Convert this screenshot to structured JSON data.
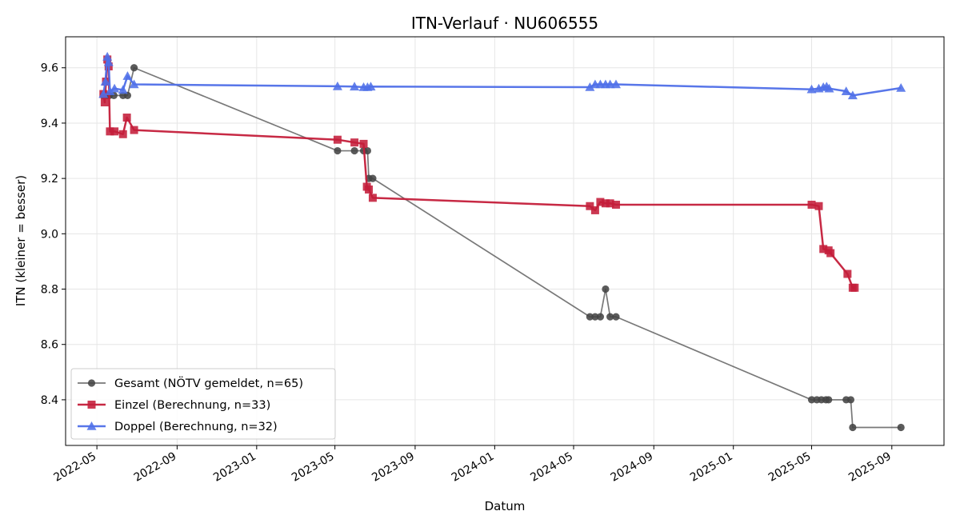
{
  "chart_data": {
    "type": "line",
    "title": "ITN-Verlauf · NU606555",
    "xlabel": "Datum",
    "ylabel": "ITN  (kleiner = besser)",
    "x_axis_type": "date",
    "xlim": [
      "2022-03-14",
      "2025-11-20"
    ],
    "ylim": [
      8.235,
      9.712
    ],
    "x_ticks": [
      "2022-05",
      "2022-09",
      "2023-01",
      "2023-05",
      "2023-09",
      "2024-01",
      "2024-05",
      "2024-09",
      "2025-01",
      "2025-05",
      "2025-09"
    ],
    "y_ticks": [
      8.4,
      8.6,
      8.8,
      9.0,
      9.2,
      9.4,
      9.6
    ],
    "grid": true,
    "legend_position": "lower-left",
    "series": [
      {
        "name": "Gesamt (NÖTV gemeldet, n=65)",
        "color": "#444444",
        "marker": "circle",
        "points": [
          [
            "2022-05-11",
            9.5
          ],
          [
            "2022-05-14",
            9.5
          ],
          [
            "2022-05-17",
            9.5
          ],
          [
            "2022-05-20",
            9.5
          ],
          [
            "2022-05-27",
            9.5
          ],
          [
            "2022-06-10",
            9.5
          ],
          [
            "2022-06-17",
            9.5
          ],
          [
            "2022-06-27",
            9.6
          ],
          [
            "2023-05-05",
            9.3
          ],
          [
            "2023-05-31",
            9.3
          ],
          [
            "2023-06-14",
            9.3
          ],
          [
            "2023-06-20",
            9.3
          ],
          [
            "2023-06-22",
            9.2
          ],
          [
            "2023-06-28",
            9.2
          ],
          [
            "2024-05-26",
            8.7
          ],
          [
            "2024-06-03",
            8.7
          ],
          [
            "2024-06-11",
            8.7
          ],
          [
            "2024-06-19",
            8.8
          ],
          [
            "2024-06-26",
            8.7
          ],
          [
            "2024-07-05",
            8.7
          ],
          [
            "2025-05-01",
            8.4
          ],
          [
            "2025-05-09",
            8.4
          ],
          [
            "2025-05-16",
            8.4
          ],
          [
            "2025-05-23",
            8.4
          ],
          [
            "2025-05-27",
            8.4
          ],
          [
            "2025-06-23",
            8.4
          ],
          [
            "2025-06-30",
            8.4
          ],
          [
            "2025-07-03",
            8.3
          ],
          [
            "2025-09-15",
            8.3
          ]
        ]
      },
      {
        "name": "Einzel (Berechnung, n=33)",
        "color": "#c41e3a",
        "marker": "square",
        "points": [
          [
            "2022-05-11",
            9.505
          ],
          [
            "2022-05-13",
            9.475
          ],
          [
            "2022-05-15",
            9.55
          ],
          [
            "2022-05-17",
            9.63
          ],
          [
            "2022-05-19",
            9.605
          ],
          [
            "2022-05-21",
            9.37
          ],
          [
            "2022-05-28",
            9.37
          ],
          [
            "2022-06-10",
            9.36
          ],
          [
            "2022-06-16",
            9.42
          ],
          [
            "2022-06-27",
            9.375
          ],
          [
            "2023-05-05",
            9.34
          ],
          [
            "2023-05-31",
            9.33
          ],
          [
            "2023-06-14",
            9.325
          ],
          [
            "2023-06-19",
            9.17
          ],
          [
            "2023-06-22",
            9.16
          ],
          [
            "2023-06-28",
            9.13
          ],
          [
            "2024-05-26",
            9.1
          ],
          [
            "2024-06-03",
            9.085
          ],
          [
            "2024-06-11",
            9.115
          ],
          [
            "2024-06-19",
            9.11
          ],
          [
            "2024-06-26",
            9.11
          ],
          [
            "2024-07-05",
            9.105
          ],
          [
            "2025-05-01",
            9.105
          ],
          [
            "2025-05-12",
            9.1
          ],
          [
            "2025-05-19",
            8.945
          ],
          [
            "2025-05-27",
            8.94
          ],
          [
            "2025-05-30",
            8.93
          ],
          [
            "2025-06-25",
            8.855
          ],
          [
            "2025-07-03",
            8.805
          ],
          [
            "2025-07-06",
            8.805
          ]
        ]
      },
      {
        "name": "Doppel (Berechnung, n=32)",
        "color": "#4f6fe8",
        "marker": "triangle",
        "points": [
          [
            "2022-05-11",
            9.505
          ],
          [
            "2022-05-14",
            9.55
          ],
          [
            "2022-05-17",
            9.64
          ],
          [
            "2022-05-19",
            9.62
          ],
          [
            "2022-05-21",
            9.515
          ],
          [
            "2022-05-28",
            9.525
          ],
          [
            "2022-06-10",
            9.52
          ],
          [
            "2022-06-17",
            9.57
          ],
          [
            "2022-06-27",
            9.54
          ],
          [
            "2023-05-05",
            9.533
          ],
          [
            "2023-05-31",
            9.532
          ],
          [
            "2023-06-14",
            9.53
          ],
          [
            "2023-06-20",
            9.53
          ],
          [
            "2023-06-25",
            9.532
          ],
          [
            "2024-05-26",
            9.53
          ],
          [
            "2024-06-03",
            9.54
          ],
          [
            "2024-06-11",
            9.54
          ],
          [
            "2024-06-19",
            9.54
          ],
          [
            "2024-06-26",
            9.54
          ],
          [
            "2024-07-05",
            9.54
          ],
          [
            "2025-05-01",
            9.522
          ],
          [
            "2025-05-12",
            9.525
          ],
          [
            "2025-05-19",
            9.53
          ],
          [
            "2025-05-24",
            9.532
          ],
          [
            "2025-05-28",
            9.525
          ],
          [
            "2025-06-23",
            9.515
          ],
          [
            "2025-07-03",
            9.5
          ],
          [
            "2025-09-15",
            9.527
          ]
        ]
      }
    ]
  }
}
